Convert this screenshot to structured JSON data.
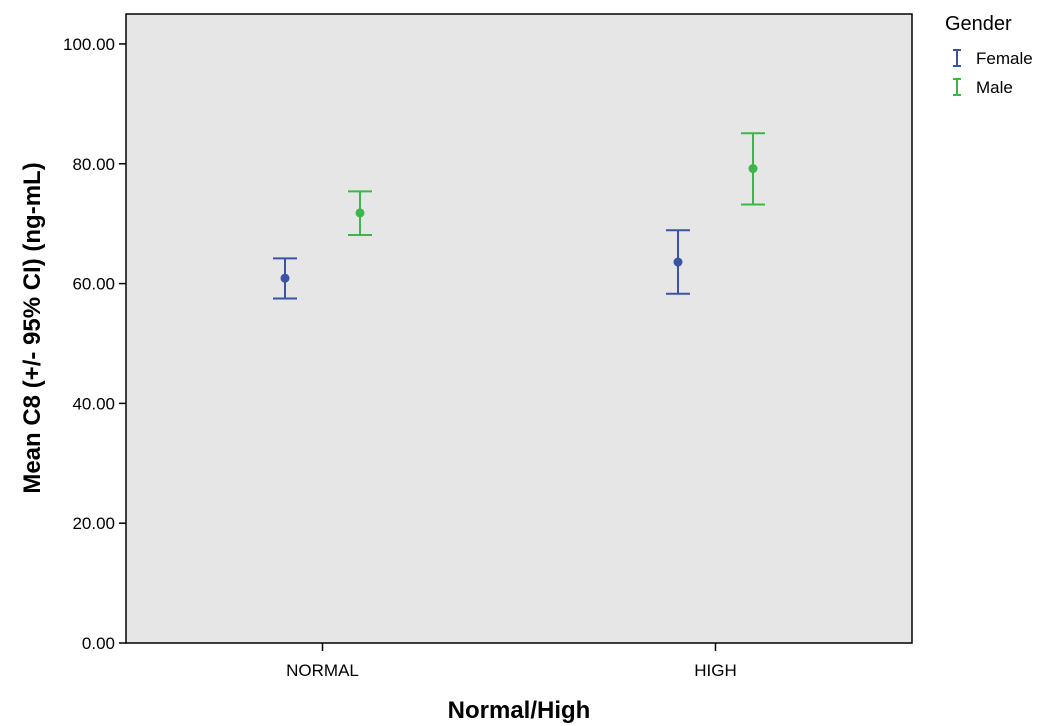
{
  "chart_data": {
    "type": "errorbar",
    "xlabel": "Normal/High",
    "ylabel": "Mean C8 (+/- 95% CI) (ng-mL)",
    "categories": [
      "NORMAL",
      "HIGH"
    ],
    "ylim": [
      0,
      105
    ],
    "yticks": [
      "0.00",
      "20.00",
      "40.00",
      "60.00",
      "80.00",
      "100.00"
    ],
    "legend": {
      "title": "Gender",
      "placement": "top-right, outside plot"
    },
    "grid": false,
    "plot_background": "#e6e6e6",
    "series": [
      {
        "name": "Female",
        "color": "#3b53a4",
        "means": [
          60.9,
          63.6
        ],
        "lower": [
          57.5,
          58.3
        ],
        "upper": [
          64.2,
          68.9
        ]
      },
      {
        "name": "Male",
        "color": "#3cb54a",
        "means": [
          71.8,
          79.2
        ],
        "lower": [
          68.1,
          73.2
        ],
        "upper": [
          75.4,
          85.1
        ]
      }
    ]
  }
}
